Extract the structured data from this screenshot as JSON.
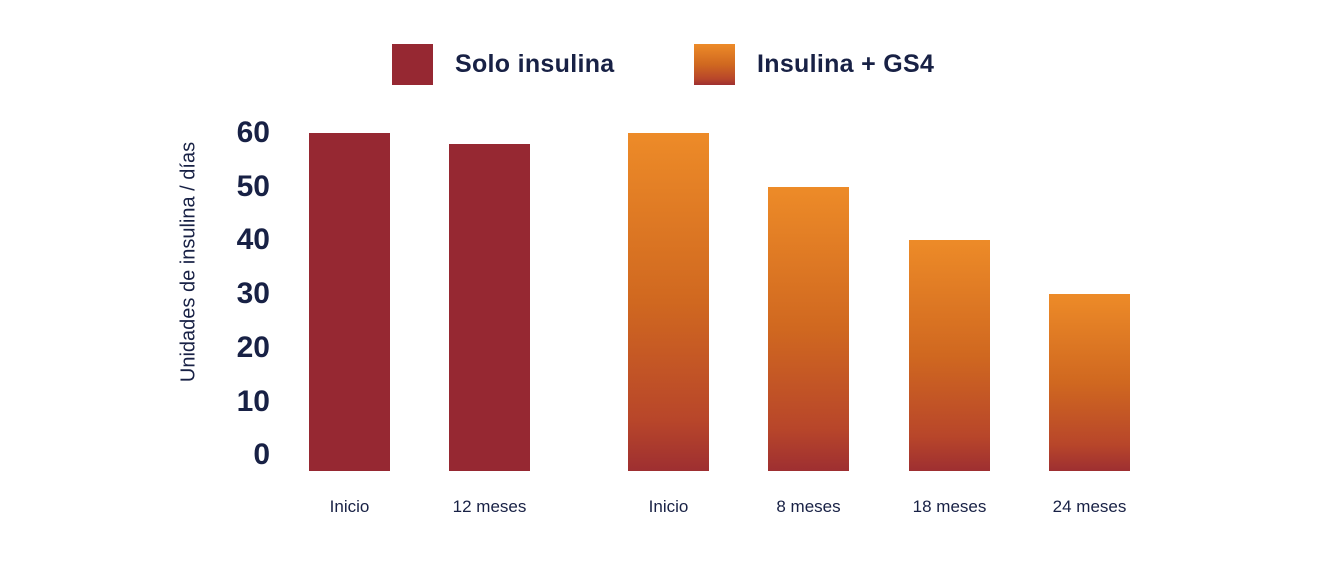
{
  "legend": {
    "items": [
      {
        "label": "Solo insulina",
        "colors": [
          "#962832"
        ],
        "stops": [
          0
        ]
      },
      {
        "label": "Insulina + GS4",
        "colors": [
          "#ED8B28",
          "#D06820",
          "#B8462A",
          "#9E2F31"
        ],
        "stops": [
          0,
          50,
          85,
          100
        ]
      }
    ]
  },
  "chart_data": {
    "type": "bar",
    "title": "",
    "xlabel": "",
    "ylabel": "Unidades de insulina / días",
    "ylim": [
      0,
      60
    ],
    "yticks": [
      60,
      50,
      40,
      30,
      20,
      10,
      0
    ],
    "grid": false,
    "legend_position": "top",
    "background_color": "#FFFFFF",
    "text_color": "#182145",
    "categories": [
      "Inicio",
      "12 meses",
      "Inicio",
      "8 meses",
      "18 meses",
      "24 meses"
    ],
    "series": [
      {
        "name": "Solo insulina",
        "colors": [
          "#962832"
        ],
        "stops": [
          0
        ],
        "values": [
          60,
          58,
          null,
          null,
          null,
          null
        ]
      },
      {
        "name": "Insulina + GS4",
        "colors": [
          "#ED8B28",
          "#D06820",
          "#B8462A",
          "#9E2F31"
        ],
        "stops": [
          0,
          50,
          85,
          100
        ],
        "values": [
          null,
          null,
          60,
          50,
          40,
          30
        ]
      }
    ]
  }
}
